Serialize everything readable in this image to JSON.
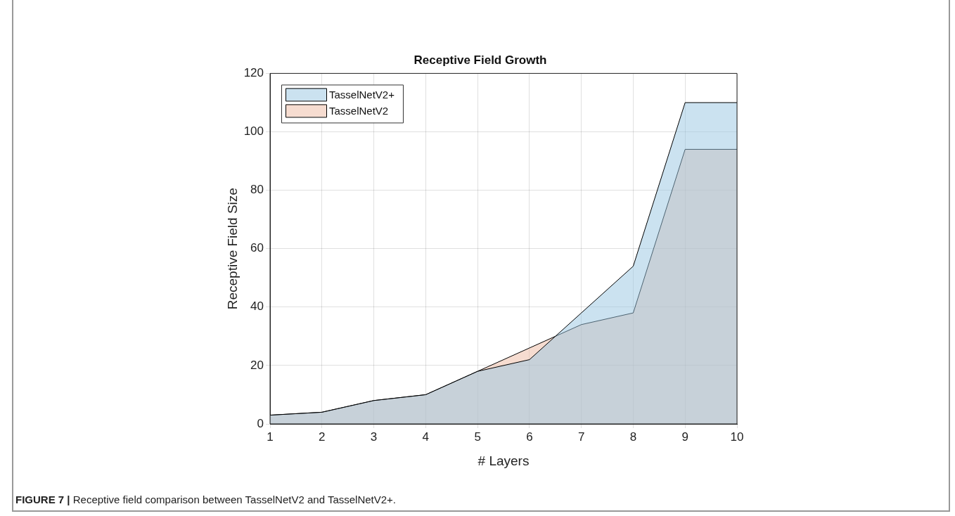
{
  "chart_data": {
    "type": "area",
    "title": "Receptive Field Growth",
    "xlabel": "# Layers",
    "ylabel": "Receptive Field Size",
    "x": [
      1,
      2,
      3,
      4,
      5,
      6,
      7,
      8,
      9,
      10
    ],
    "series": [
      {
        "name": "TasselNetV2+",
        "color": "#cbe2f0",
        "values": [
          3,
          4,
          8,
          10,
          18,
          22,
          38,
          54,
          110,
          110
        ]
      },
      {
        "name": "TasselNetV2",
        "color": "#f6dcd0",
        "values": [
          3,
          4,
          8,
          10,
          18,
          26,
          34,
          38,
          94,
          94
        ]
      }
    ],
    "xlim": [
      1,
      10
    ],
    "xticks": [
      1,
      2,
      3,
      4,
      5,
      6,
      7,
      8,
      9,
      10
    ],
    "ylim": [
      0,
      120
    ],
    "yticks": [
      0,
      20,
      40,
      60,
      80,
      100,
      120
    ],
    "grid": true,
    "legend": "top left",
    "marker": "none",
    "annotations": [
      "FIGURE 7 | Receptive field comparison between TasselNetV2 and TasselNetV2+."
    ]
  }
}
